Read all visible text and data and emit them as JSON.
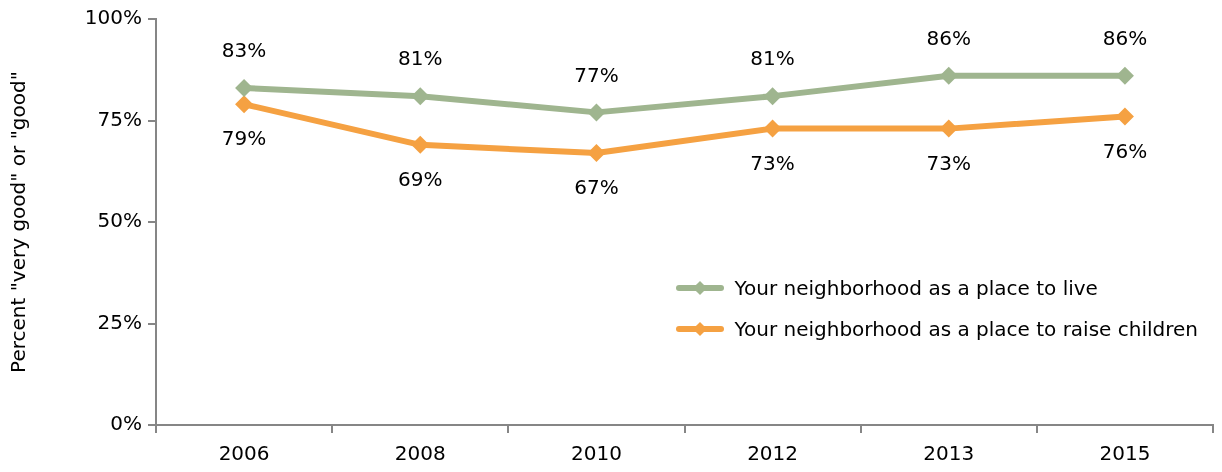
{
  "chart_data": {
    "type": "line",
    "categories": [
      "2006",
      "2008",
      "2010",
      "2012",
      "2013",
      "2015"
    ],
    "series": [
      {
        "name": "Your neighborhood as a place to live",
        "color": "#9fb58f",
        "values": [
          83,
          81,
          77,
          81,
          86,
          86
        ],
        "value_labels": [
          "83%",
          "81%",
          "77%",
          "81%",
          "86%",
          "86%"
        ]
      },
      {
        "name": "Your neighborhood as a place to raise children",
        "color": "#f5a142",
        "values": [
          79,
          69,
          67,
          73,
          73,
          76
        ],
        "value_labels": [
          "79%",
          "69%",
          "67%",
          "73%",
          "73%",
          "76%"
        ]
      }
    ],
    "ylabel": "Percent \"very good\" or \"good\"",
    "ylim": [
      0,
      100
    ],
    "yticks": [
      {
        "value": 0,
        "label": "0%"
      },
      {
        "value": 25,
        "label": "25%"
      },
      {
        "value": 50,
        "label": "50%"
      },
      {
        "value": 75,
        "label": "75%"
      },
      {
        "value": 100,
        "label": "100%"
      }
    ],
    "grid": false,
    "legend": "bottom right",
    "marker": "diamond",
    "line_style": "solid"
  }
}
